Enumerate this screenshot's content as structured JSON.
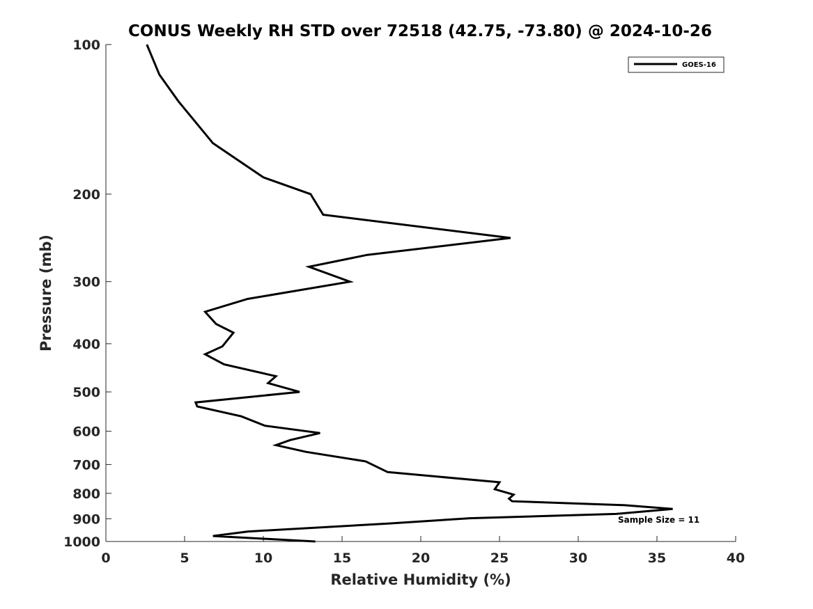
{
  "chart_data": {
    "type": "line",
    "title": "CONUS Weekly RH STD over 72518 (42.75, -73.80) @ 2024-10-26",
    "xlabel": "Relative Humidity (%)",
    "ylabel": "Pressure (mb)",
    "xlim": [
      0,
      40
    ],
    "ylim": [
      100,
      1000
    ],
    "y_scale": "log",
    "y_reversed": true,
    "grid": false,
    "x_ticks": [
      0,
      5,
      10,
      15,
      20,
      25,
      30,
      35,
      40
    ],
    "y_ticks": [
      100,
      200,
      300,
      400,
      500,
      600,
      700,
      800,
      900,
      1000
    ],
    "legend": {
      "position": "top-right",
      "entries": [
        "GOES-16"
      ]
    },
    "annotation": "Sample Size = 11",
    "series": [
      {
        "name": "GOES-16",
        "color": "#000000",
        "points": [
          [
            2.6,
            100
          ],
          [
            3.4,
            115
          ],
          [
            4.6,
            130
          ],
          [
            6.8,
            158
          ],
          [
            10.0,
            185
          ],
          [
            13.0,
            200
          ],
          [
            13.8,
            220
          ],
          [
            25.7,
            245
          ],
          [
            16.6,
            265
          ],
          [
            12.9,
            280
          ],
          [
            15.5,
            300
          ],
          [
            9.0,
            325
          ],
          [
            6.3,
            345
          ],
          [
            7.0,
            365
          ],
          [
            8.1,
            380
          ],
          [
            7.4,
            405
          ],
          [
            6.3,
            420
          ],
          [
            7.5,
            440
          ],
          [
            10.8,
            465
          ],
          [
            10.3,
            480
          ],
          [
            12.3,
            500
          ],
          [
            5.7,
            525
          ],
          [
            5.8,
            535
          ],
          [
            8.6,
            560
          ],
          [
            10.1,
            585
          ],
          [
            13.6,
            605
          ],
          [
            11.7,
            625
          ],
          [
            10.8,
            640
          ],
          [
            12.7,
            660
          ],
          [
            16.5,
            690
          ],
          [
            17.9,
            725
          ],
          [
            25.0,
            760
          ],
          [
            24.7,
            785
          ],
          [
            25.9,
            805
          ],
          [
            25.6,
            820
          ],
          [
            25.8,
            830
          ],
          [
            32.9,
            845
          ],
          [
            36.0,
            860
          ],
          [
            32.4,
            880
          ],
          [
            23.1,
            898
          ],
          [
            18.0,
            920
          ],
          [
            9.0,
            955
          ],
          [
            6.8,
            975
          ],
          [
            13.3,
            1000
          ]
        ]
      }
    ]
  }
}
